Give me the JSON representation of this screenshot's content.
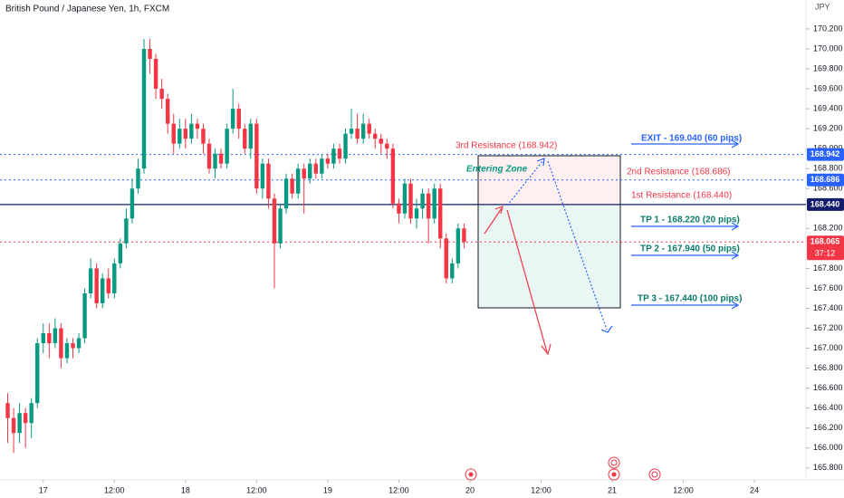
{
  "chart_data": {
    "type": "candlestick",
    "title": "British Pound / Japanese Yen, 1h, FXCM",
    "y_axis_label": "JPY",
    "x": [
      -6,
      -5,
      -4,
      -3,
      -2,
      -1,
      0,
      1,
      2,
      3,
      4,
      5,
      6,
      7,
      8,
      9,
      10,
      11,
      12,
      13,
      14,
      15,
      16,
      17,
      18,
      19,
      20,
      21,
      22,
      23,
      24,
      25,
      26,
      27,
      28,
      29,
      30,
      31,
      32,
      33,
      34,
      35,
      36,
      37,
      38,
      39,
      40,
      41,
      42,
      43,
      44,
      45,
      46,
      47,
      48,
      49,
      50,
      51,
      52,
      53,
      54,
      55,
      56,
      57,
      58,
      59,
      60,
      61,
      62,
      63,
      64,
      65,
      66,
      67,
      68,
      69,
      70,
      71
    ],
    "open": [
      166.45,
      166.3,
      166.15,
      166.35,
      166.25,
      166.45,
      167.05,
      167.15,
      167.05,
      167.2,
      166.9,
      167.05,
      167.0,
      167.1,
      167.55,
      167.8,
      167.45,
      167.7,
      167.55,
      167.85,
      168.05,
      168.3,
      168.6,
      168.8,
      170.0,
      169.9,
      169.6,
      169.5,
      169.25,
      169.05,
      169.2,
      169.1,
      169.25,
      169.2,
      169.05,
      168.8,
      168.95,
      168.85,
      169.2,
      169.4,
      169.2,
      169.0,
      169.25,
      168.6,
      168.85,
      168.5,
      168.05,
      168.4,
      168.7,
      168.55,
      168.8,
      168.7,
      168.85,
      168.75,
      168.9,
      168.85,
      169.0,
      168.9,
      169.15,
      169.2,
      169.1,
      169.25,
      169.15,
      169.1,
      169.05,
      169.0,
      168.45,
      168.35,
      168.65,
      168.3,
      168.4,
      168.55,
      168.3,
      168.6,
      168.1,
      167.7,
      167.85,
      168.2
    ],
    "high": [
      166.55,
      166.4,
      166.45,
      166.4,
      166.5,
      167.1,
      167.25,
      167.25,
      167.3,
      167.25,
      167.1,
      167.1,
      167.15,
      167.6,
      167.9,
      167.85,
      167.75,
      167.8,
      167.9,
      168.1,
      168.4,
      168.7,
      168.9,
      170.1,
      170.1,
      169.95,
      169.7,
      169.55,
      169.35,
      169.3,
      169.3,
      169.35,
      169.3,
      169.25,
      169.1,
      169.0,
      169.0,
      169.25,
      169.6,
      169.45,
      169.25,
      169.3,
      169.3,
      168.9,
      168.9,
      168.55,
      168.45,
      168.75,
      168.75,
      168.85,
      168.85,
      168.9,
      168.9,
      168.95,
      168.95,
      169.05,
      169.05,
      169.2,
      169.4,
      169.35,
      169.35,
      169.3,
      169.2,
      169.15,
      169.1,
      169.05,
      168.5,
      168.7,
      168.7,
      168.5,
      168.6,
      168.6,
      168.65,
      168.65,
      168.15,
      167.9,
      168.25,
      168.25
    ],
    "low": [
      166.05,
      165.95,
      166.05,
      166.0,
      166.1,
      166.4,
      166.95,
      166.9,
      167.0,
      166.8,
      166.85,
      166.9,
      166.95,
      167.05,
      167.5,
      167.4,
      167.4,
      167.5,
      167.5,
      167.8,
      168.0,
      168.25,
      168.55,
      168.75,
      169.75,
      169.5,
      169.4,
      169.15,
      168.95,
      169.0,
      169.0,
      169.05,
      169.1,
      168.95,
      168.75,
      168.7,
      168.8,
      168.8,
      169.15,
      169.1,
      168.95,
      168.9,
      168.55,
      168.5,
      168.4,
      167.6,
      168.0,
      168.35,
      168.5,
      168.5,
      168.35,
      168.65,
      168.7,
      168.7,
      168.8,
      168.8,
      168.85,
      168.85,
      169.1,
      169.05,
      169.05,
      169.1,
      169.0,
      168.95,
      168.9,
      168.4,
      168.25,
      168.3,
      168.25,
      168.2,
      168.3,
      168.05,
      168.25,
      168.0,
      167.65,
      167.65,
      167.8,
      168.0
    ],
    "close": [
      166.3,
      166.15,
      166.35,
      166.25,
      166.45,
      167.05,
      167.15,
      167.05,
      167.2,
      166.9,
      167.05,
      167.0,
      167.1,
      167.55,
      167.8,
      167.45,
      167.7,
      167.55,
      167.85,
      168.05,
      168.3,
      168.6,
      168.8,
      170.0,
      169.9,
      169.6,
      169.5,
      169.25,
      169.05,
      169.2,
      169.1,
      169.25,
      169.2,
      169.05,
      168.8,
      168.95,
      168.85,
      169.2,
      169.4,
      169.2,
      169.0,
      169.25,
      168.6,
      168.85,
      168.5,
      168.05,
      168.4,
      168.7,
      168.55,
      168.8,
      168.7,
      168.85,
      168.75,
      168.9,
      168.85,
      169.0,
      168.9,
      169.15,
      169.2,
      169.1,
      169.25,
      169.15,
      169.1,
      169.05,
      169.0,
      168.45,
      168.35,
      168.65,
      168.3,
      168.4,
      168.55,
      168.3,
      168.6,
      168.1,
      167.7,
      167.85,
      168.2,
      168.065
    ],
    "up_color": "#089981",
    "down_color": "#f23645",
    "xlim": [
      -7.3,
      128.7
    ],
    "xticks": [
      {
        "value": 0,
        "label": "17"
      },
      {
        "value": 12,
        "label": "12:00"
      },
      {
        "value": 24,
        "label": "18"
      },
      {
        "value": 36,
        "label": "12:00"
      },
      {
        "value": 48,
        "label": "19"
      },
      {
        "value": 60,
        "label": "12:00"
      },
      {
        "value": 72,
        "label": "20"
      },
      {
        "value": 84,
        "label": "12:00"
      },
      {
        "value": 96,
        "label": "21"
      },
      {
        "value": 108,
        "label": "12:00"
      },
      {
        "value": 120,
        "label": "24"
      }
    ],
    "ylim": [
      165.68,
      170.49
    ],
    "yticks": [
      {
        "value": 170.2,
        "label": "170.200"
      },
      {
        "value": 170,
        "label": "170.000"
      },
      {
        "value": 169.8,
        "label": "169.800"
      },
      {
        "value": 169.6,
        "label": "169.600"
      },
      {
        "value": 169.4,
        "label": "169.400"
      },
      {
        "value": 169.2,
        "label": "169.200"
      },
      {
        "value": 169,
        "label": "169.000"
      },
      {
        "value": 168.8,
        "label": "168.800"
      },
      {
        "value": 168.6,
        "label": "168.600"
      },
      {
        "value": 168.2,
        "label": "168.200"
      },
      {
        "value": 167.8,
        "label": "167.800"
      },
      {
        "value": 167.6,
        "label": "167.600"
      },
      {
        "value": 167.4,
        "label": "167.400"
      },
      {
        "value": 167.2,
        "label": "167.200"
      },
      {
        "value": 167,
        "label": "167.000"
      },
      {
        "value": 166.8,
        "label": "166.800"
      },
      {
        "value": 166.6,
        "label": "166.600"
      },
      {
        "value": 166.4,
        "label": "166.400"
      },
      {
        "value": 166.2,
        "label": "166.200"
      },
      {
        "value": 166,
        "label": "166.000"
      },
      {
        "value": 165.8,
        "label": "165.800"
      }
    ],
    "grid": false,
    "levels": [
      {
        "value": 168.942,
        "color": "#2962ff",
        "style": "dotted"
      },
      {
        "value": 168.686,
        "color": "#2962ff",
        "style": "dotted"
      },
      {
        "value": 168.44,
        "label": "168.440",
        "color": "#131d6b",
        "style": "solid"
      },
      {
        "value": 168.065,
        "color": "#f23645",
        "style": "dotted"
      }
    ],
    "countdown": "37:12",
    "annotations": [
      "3rd Resistance (168.942)",
      "Entering Zone",
      "2nd Resistance (168.686)",
      "1st Resistance (168.440)",
      "EXIT - 169.040 (60 pips)",
      "TP 1 - 168.220 (20 pips)",
      "TP 2 - 167.940 (50 pips)",
      "TP 3 - 167.440 (100 pips)"
    ]
  }
}
